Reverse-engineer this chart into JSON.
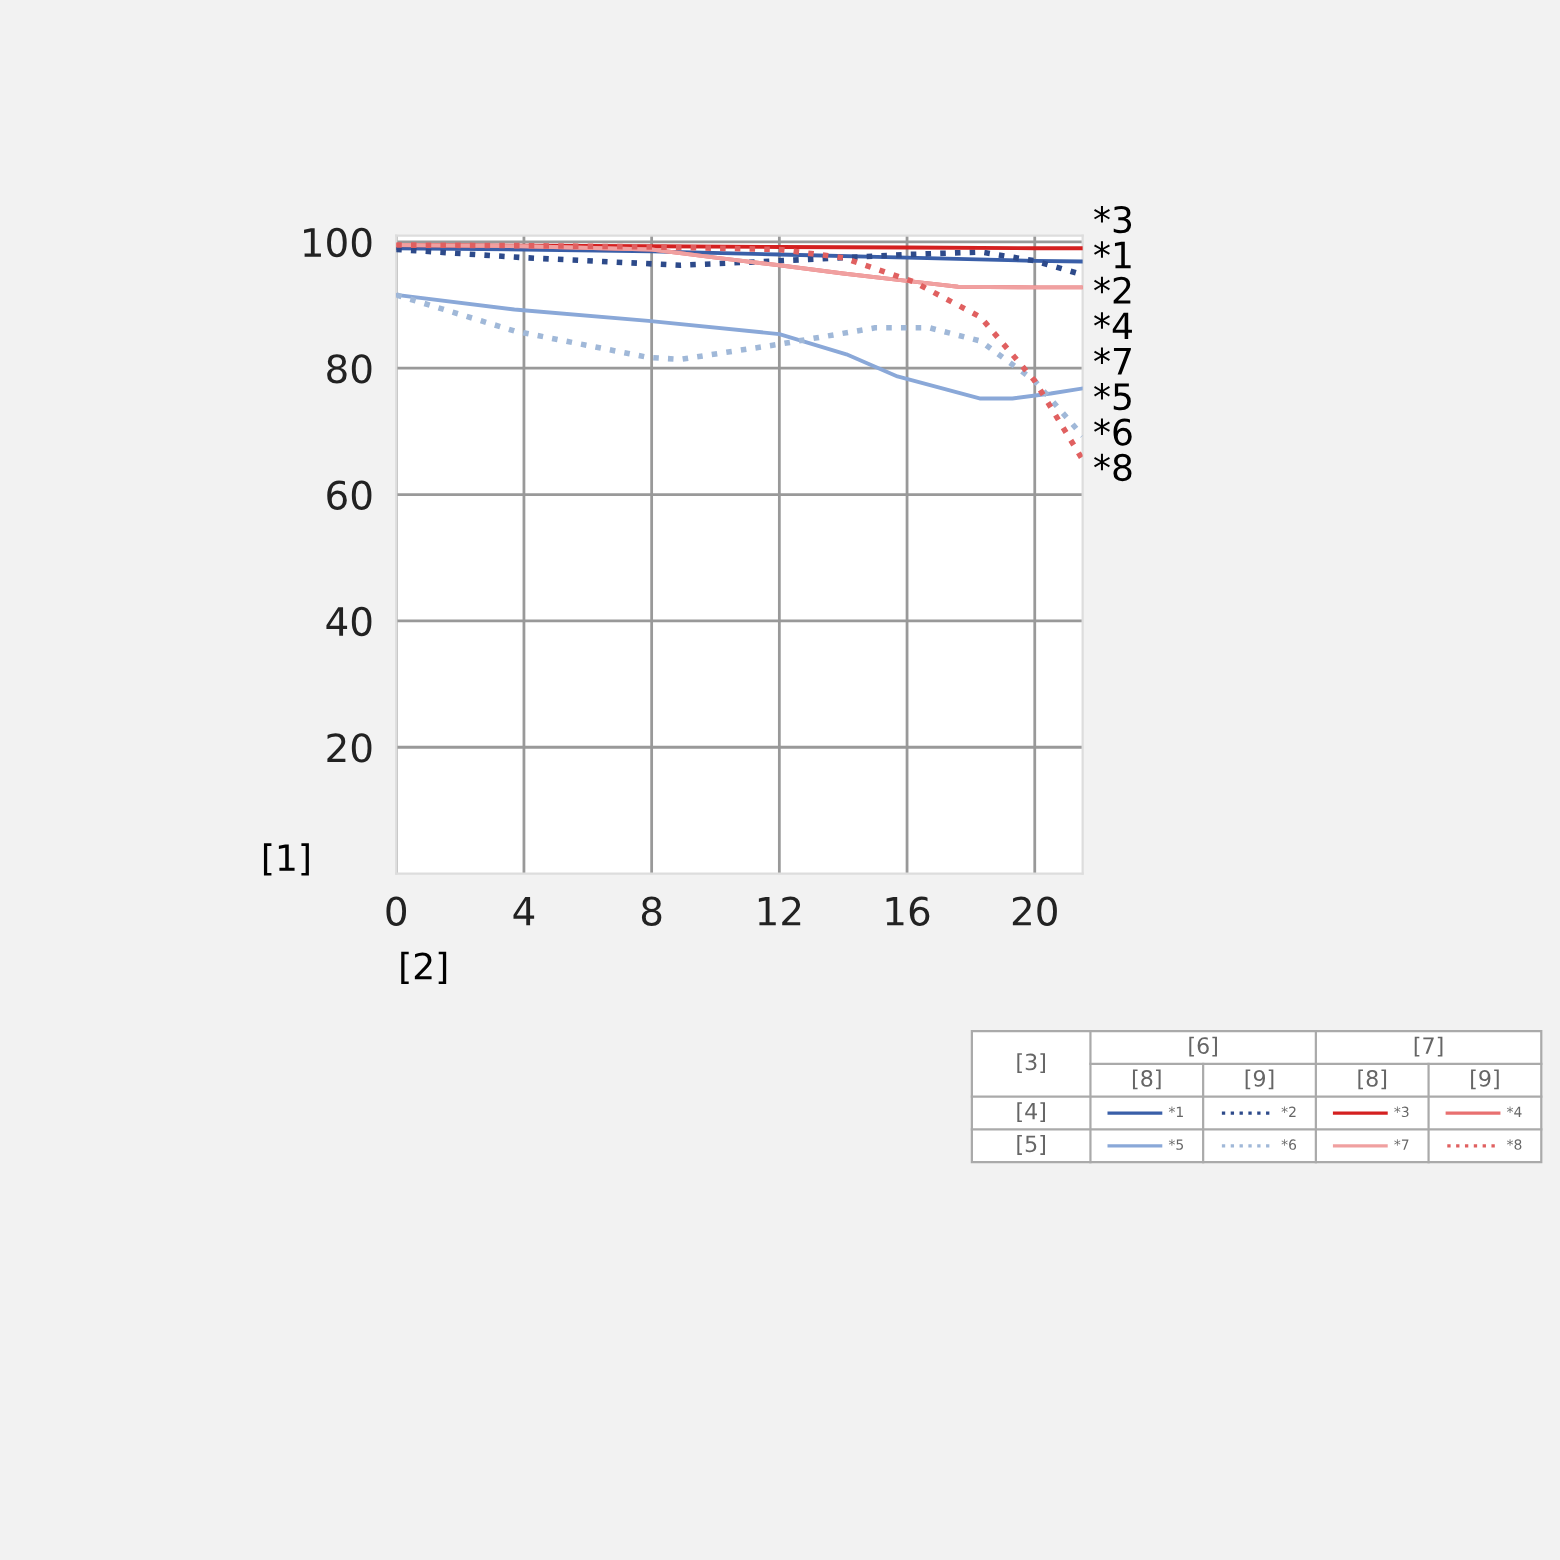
{
  "chart_data": {
    "type": "line",
    "xlabel": "[2]",
    "ylabel": "[1]",
    "xlim": [
      0,
      21.5
    ],
    "ylim": [
      0,
      101
    ],
    "xticks": [
      0,
      4,
      8,
      12,
      16,
      20
    ],
    "yticks": [
      20,
      40,
      60,
      80,
      100
    ],
    "grid": true,
    "legend": "bottom right",
    "marker": "none",
    "annotations": [
      "[3]",
      "[6]",
      "[7]",
      "[8]",
      "[9]",
      "[8]",
      "[9]",
      "[4]",
      "[5]"
    ],
    "series": [
      {
        "name": "*1",
        "color": "#3a5fa8",
        "line_style": "solid",
        "x": [
          0,
          4,
          8,
          12,
          16,
          20,
          21.5
        ],
        "values": [
          99.0,
          98.8,
          98.5,
          98.0,
          97.5,
          97.0,
          96.9
        ]
      },
      {
        "name": "*2",
        "color": "#2d4a8a",
        "line_style": "dotted",
        "x": [
          0,
          4,
          8.9,
          12,
          16,
          18.3,
          20,
          21.5
        ],
        "values": [
          98.8,
          97.5,
          96.3,
          97.0,
          98.0,
          98.4,
          97.0,
          94.8
        ]
      },
      {
        "name": "*3",
        "color": "#d42020",
        "line_style": "solid",
        "x": [
          0,
          4,
          8,
          12,
          16,
          20,
          21.5
        ],
        "values": [
          99.5,
          99.4,
          99.3,
          99.2,
          99.1,
          99.0,
          99.0
        ]
      },
      {
        "name": "*4",
        "color": "#e87070",
        "line_style": "solid",
        "x": [
          0,
          4,
          8,
          10,
          12,
          14,
          16.2,
          17.6,
          20,
          21.5
        ],
        "values": [
          99.5,
          99.3,
          98.8,
          97.5,
          96.3,
          95.0,
          93.7,
          92.9,
          92.8,
          92.8
        ]
      },
      {
        "name": "*5",
        "color": "#8aa8d8",
        "line_style": "solid",
        "x": [
          0,
          3.7,
          7.9,
          12,
          14.1,
          15.7,
          18.3,
          19.3,
          20.5,
          21.5
        ],
        "values": [
          91.6,
          89.3,
          87.5,
          85.4,
          82.2,
          78.7,
          75.2,
          75.2,
          76.0,
          76.8
        ]
      },
      {
        "name": "*6",
        "color": "#a0b8d8",
        "line_style": "dotted",
        "x": [
          0,
          3.7,
          7.9,
          8.9,
          12,
          15,
          16.7,
          18.3,
          20,
          21.5
        ],
        "values": [
          91.6,
          85.9,
          81.7,
          81.4,
          83.8,
          86.4,
          86.4,
          84.3,
          78.0,
          69.3
        ]
      },
      {
        "name": "*7",
        "color": "#f0a0a0",
        "line_style": "solid",
        "x": [
          0,
          4,
          8,
          10,
          12,
          14,
          16.2,
          17.6,
          20,
          21.5
        ],
        "values": [
          99.5,
          99.3,
          98.8,
          97.5,
          96.3,
          95.0,
          93.7,
          92.9,
          92.8,
          92.8
        ]
      },
      {
        "name": "*8",
        "color": "#e06060",
        "line_style": "dotted",
        "x": [
          0,
          4,
          8,
          12,
          14,
          16.2,
          18.3,
          20,
          21.5
        ],
        "values": [
          99.5,
          99.4,
          99.2,
          98.8,
          97.5,
          93.7,
          88.1,
          78.0,
          65.5
        ]
      }
    ]
  }
}
